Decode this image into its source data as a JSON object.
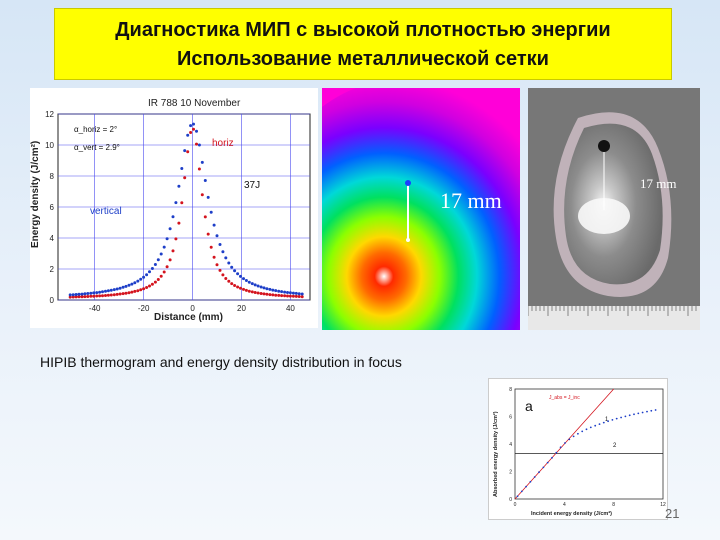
{
  "slide": {
    "title_line1": "Диагностика МИП с высокой плотностью энергии",
    "title_line2": "Использование металлической сетки",
    "caption": "HIPIB thermogram and energy density distribution in focus",
    "slide_number": "21"
  },
  "left_plot": {
    "header": "IR 788  10 November",
    "ylabel": "Energy density (J/cm²)",
    "xlabel": "Distance (mm)",
    "label_horiz": "horiz",
    "label_vertical": "vertical",
    "label_energy": "37J",
    "alpha_horiz": "α_horiz = 2°",
    "alpha_vert": "α_vert = 2.9°",
    "series_colors": {
      "horiz": "#d4141e",
      "vertical": "#1e3fc8",
      "grid": "#4a4af0"
    },
    "chart_data": {
      "type": "scatter",
      "x_ticks": [
        -40,
        -20,
        0,
        20,
        40
      ],
      "y_ticks": [
        0,
        2,
        4,
        6,
        8,
        10,
        12
      ],
      "xlim": [
        -55,
        48
      ],
      "ylim": [
        0,
        12
      ],
      "series": [
        {
          "name": "horiz",
          "peak": 11.0,
          "fwhm_mm": 10
        },
        {
          "name": "vertical",
          "peak": 11.3,
          "fwhm_mm": 15
        }
      ]
    }
  },
  "thermogram": {
    "label": "17 mm"
  },
  "photo": {
    "label": "17 mm"
  },
  "right_plot": {
    "panel_label": "a",
    "ylabel": "Absorbed energy density (J/cm²)",
    "xlabel": "Incident energy density (J/cm²)",
    "legend_top": "J_abs = J_inc",
    "curve_label_1": "1",
    "curve_label_2": "2",
    "chart_data": {
      "type": "line",
      "x_ticks": [
        0,
        4,
        8,
        12
      ],
      "y_ticks": [
        0,
        2,
        4,
        6,
        8
      ],
      "xlim": [
        0,
        12
      ],
      "ylim": [
        0,
        8
      ],
      "threshold_y": 3.3
    }
  }
}
